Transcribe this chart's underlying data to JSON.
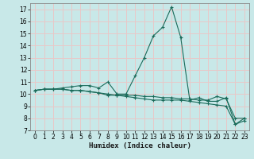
{
  "xlabel": "Humidex (Indice chaleur)",
  "ylabel": "",
  "bg_color": "#c8e8e8",
  "grid_color_major": "#e8c8c8",
  "line_color": "#1a6b5a",
  "xlim": [
    -0.5,
    23.5
  ],
  "ylim": [
    7,
    17.5
  ],
  "yticks": [
    7,
    8,
    9,
    10,
    11,
    12,
    13,
    14,
    15,
    16,
    17
  ],
  "xticks": [
    0,
    1,
    2,
    3,
    4,
    5,
    6,
    7,
    8,
    9,
    10,
    11,
    12,
    13,
    14,
    15,
    16,
    17,
    18,
    19,
    20,
    21,
    22,
    23
  ],
  "series": [
    {
      "x": [
        0,
        1,
        2,
        3,
        4,
        5,
        6,
        7,
        8,
        9,
        10,
        11,
        12,
        13,
        14,
        15,
        16,
        17,
        18,
        19,
        20,
        21,
        22,
        23
      ],
      "y": [
        10.3,
        10.4,
        10.4,
        10.5,
        10.6,
        10.7,
        10.7,
        10.5,
        11.0,
        10.0,
        10.0,
        11.5,
        13.0,
        14.8,
        15.5,
        17.2,
        14.7,
        9.5,
        9.7,
        9.4,
        9.4,
        9.7,
        7.5,
        8.0
      ]
    },
    {
      "x": [
        0,
        1,
        2,
        3,
        4,
        5,
        6,
        7,
        8,
        9,
        10,
        11,
        12,
        13,
        14,
        15,
        16,
        17,
        18,
        19,
        20,
        21,
        22,
        23
      ],
      "y": [
        10.3,
        10.4,
        10.4,
        10.4,
        10.3,
        10.3,
        10.2,
        10.1,
        10.0,
        9.9,
        9.9,
        9.9,
        9.8,
        9.8,
        9.7,
        9.7,
        9.6,
        9.6,
        9.5,
        9.5,
        9.8,
        9.6,
        8.0,
        8.0
      ]
    },
    {
      "x": [
        0,
        1,
        2,
        3,
        4,
        5,
        6,
        7,
        8,
        9,
        10,
        11,
        12,
        13,
        14,
        15,
        16,
        17,
        18,
        19,
        20,
        21,
        22,
        23
      ],
      "y": [
        10.3,
        10.4,
        10.4,
        10.4,
        10.3,
        10.3,
        10.2,
        10.1,
        9.9,
        9.9,
        9.8,
        9.7,
        9.6,
        9.5,
        9.5,
        9.5,
        9.5,
        9.4,
        9.3,
        9.2,
        9.1,
        9.0,
        7.5,
        7.8
      ]
    }
  ]
}
